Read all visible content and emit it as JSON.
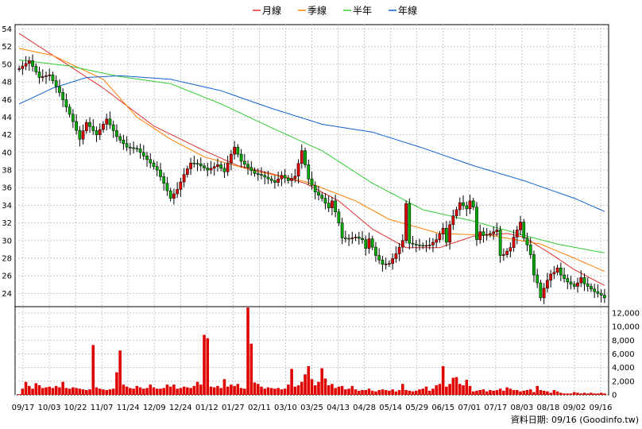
{
  "chart_data": {
    "type": "candlestick",
    "legend": [
      {
        "name": "月線",
        "color": "#e03030"
      },
      {
        "name": "季線",
        "color": "#ff8000"
      },
      {
        "name": "半年",
        "color": "#33cc33"
      },
      {
        "name": "年線",
        "color": "#1060d0"
      }
    ],
    "x_ticks": [
      "09/17",
      "10/03",
      "10/22",
      "11/07",
      "11/24",
      "12/09",
      "12/24",
      "01/12",
      "01/27",
      "02/11",
      "03/10",
      "03/25",
      "04/13",
      "04/28",
      "05/14",
      "05/29",
      "06/15",
      "07/01",
      "07/17",
      "08/03",
      "08/18",
      "09/02",
      "09/16"
    ],
    "price_axis": {
      "ticks": [
        24,
        26,
        28,
        30,
        32,
        34,
        36,
        38,
        40,
        42,
        44,
        46,
        48,
        50,
        52,
        54
      ],
      "min": 22.5,
      "max": 54.5
    },
    "volume_axis": {
      "ticks": [
        0,
        2000,
        4000,
        6000,
        8000,
        10000,
        12000
      ],
      "tick_labels": [
        "0",
        "2,000",
        "4,000",
        "6,000",
        "8,000",
        "10,000",
        "12,000"
      ],
      "min": 0,
      "max": 12000
    },
    "price_path": [
      [
        0,
        49.5
      ],
      [
        3,
        50.4
      ],
      [
        6,
        48.5
      ],
      [
        9,
        48.8
      ],
      [
        12,
        46.8
      ],
      [
        16,
        43.5
      ],
      [
        18,
        41.5
      ],
      [
        20,
        43.4
      ],
      [
        23,
        42
      ],
      [
        26,
        43.8
      ],
      [
        29,
        41.8
      ],
      [
        32,
        40.6
      ],
      [
        35,
        40.4
      ],
      [
        38,
        39.2
      ],
      [
        41,
        38
      ],
      [
        43,
        36.5
      ],
      [
        45,
        34.8
      ],
      [
        47,
        35.8
      ],
      [
        49,
        37.5
      ],
      [
        51,
        38.8
      ],
      [
        53,
        38.7
      ],
      [
        56,
        38
      ],
      [
        59,
        38.6
      ],
      [
        61,
        37.8
      ],
      [
        63,
        39.8
      ],
      [
        64,
        40.6
      ],
      [
        66,
        39
      ],
      [
        68,
        38.3
      ],
      [
        70,
        37.6
      ],
      [
        72,
        37.4
      ],
      [
        74,
        37
      ],
      [
        76,
        36.6
      ],
      [
        78,
        37.4
      ],
      [
        80,
        36.8
      ],
      [
        82,
        37.3
      ],
      [
        84,
        40.2
      ],
      [
        86,
        37
      ],
      [
        88,
        35.5
      ],
      [
        90,
        34.8
      ],
      [
        92,
        33.7
      ],
      [
        93,
        34.5
      ],
      [
        95,
        32
      ],
      [
        96,
        30.3
      ],
      [
        98,
        30.2
      ],
      [
        100,
        30.4
      ],
      [
        102,
        30.1
      ],
      [
        103,
        29.1
      ],
      [
        104,
        30.2
      ],
      [
        106,
        28.3
      ],
      [
        108,
        27.3
      ],
      [
        110,
        27.4
      ],
      [
        112,
        28.5
      ],
      [
        114,
        30
      ],
      [
        115,
        34.2
      ],
      [
        116,
        29.7
      ],
      [
        118,
        29.5
      ],
      [
        120,
        29.4
      ],
      [
        122,
        29.5
      ],
      [
        124,
        30.1
      ],
      [
        126,
        31.4
      ],
      [
        127,
        29.8
      ],
      [
        128,
        31.8
      ],
      [
        129,
        32.8
      ],
      [
        130,
        33.5
      ],
      [
        131,
        34.3
      ],
      [
        133,
        33.6
      ],
      [
        134,
        34.5
      ],
      [
        135,
        33.8
      ],
      [
        136,
        30.1
      ],
      [
        137,
        31
      ],
      [
        138,
        30.6
      ],
      [
        140,
        30.8
      ],
      [
        142,
        31.2
      ],
      [
        143,
        28.3
      ],
      [
        144,
        28.4
      ],
      [
        146,
        29.2
      ],
      [
        147,
        30.4
      ],
      [
        148,
        31.2
      ],
      [
        149,
        32.1
      ],
      [
        150,
        30.3
      ],
      [
        151,
        29.5
      ],
      [
        152,
        28.4
      ],
      [
        153,
        26.1
      ],
      [
        154,
        25.2
      ],
      [
        155,
        23.5
      ],
      [
        156,
        24.6
      ],
      [
        157,
        25.5
      ],
      [
        158,
        26.2
      ],
      [
        159,
        26.4
      ],
      [
        160,
        26.9
      ],
      [
        161,
        26.1
      ],
      [
        162,
        25.7
      ],
      [
        163,
        25.3
      ],
      [
        165,
        24.8
      ],
      [
        166,
        25.2
      ],
      [
        167,
        25.8
      ],
      [
        168,
        25.1
      ],
      [
        169,
        24.8
      ],
      [
        171,
        24.2
      ],
      [
        173,
        23.8
      ],
      [
        174,
        23.5
      ]
    ],
    "candle_count": 175,
    "month_ma": [
      [
        0,
        53.5
      ],
      [
        6,
        52
      ],
      [
        15,
        49.8
      ],
      [
        25,
        47.3
      ],
      [
        40,
        43
      ],
      [
        55,
        40.2
      ],
      [
        65,
        38.5
      ],
      [
        75,
        37.6
      ],
      [
        85,
        36.5
      ],
      [
        95,
        34.5
      ],
      [
        105,
        31.3
      ],
      [
        115,
        29.2
      ],
      [
        125,
        29.2
      ],
      [
        135,
        30.5
      ],
      [
        145,
        30.8
      ],
      [
        150,
        30.4
      ],
      [
        158,
        28.5
      ],
      [
        165,
        26.7
      ],
      [
        174,
        24.9
      ]
    ],
    "quarter_ma": [
      [
        0,
        51.8
      ],
      [
        10,
        51
      ],
      [
        25,
        48.3
      ],
      [
        35,
        44
      ],
      [
        45,
        41.5
      ],
      [
        55,
        39.5
      ],
      [
        70,
        37.9
      ],
      [
        85,
        36.7
      ],
      [
        100,
        34.5
      ],
      [
        110,
        32.4
      ],
      [
        125,
        30.8
      ],
      [
        140,
        30.6
      ],
      [
        155,
        29.6
      ],
      [
        165,
        28
      ],
      [
        174,
        26.5
      ]
    ],
    "half_ma": [
      [
        0,
        50.5
      ],
      [
        15,
        49.8
      ],
      [
        30,
        48.6
      ],
      [
        45,
        47.8
      ],
      [
        60,
        45.5
      ],
      [
        75,
        42.8
      ],
      [
        90,
        40.2
      ],
      [
        105,
        36.5
      ],
      [
        120,
        33.5
      ],
      [
        135,
        32.2
      ],
      [
        150,
        30.6
      ],
      [
        160,
        29.6
      ],
      [
        174,
        28.6
      ]
    ],
    "year_ma": [
      [
        0,
        45.5
      ],
      [
        10,
        47.3
      ],
      [
        20,
        48.5
      ],
      [
        30,
        48.7
      ],
      [
        45,
        48.3
      ],
      [
        60,
        47
      ],
      [
        75,
        45
      ],
      [
        90,
        43.2
      ],
      [
        105,
        42.3
      ],
      [
        120,
        40.5
      ],
      [
        135,
        38.5
      ],
      [
        150,
        36.8
      ],
      [
        165,
        34.8
      ],
      [
        174,
        33.3
      ]
    ],
    "volume": [
      100,
      900,
      1900,
      1300,
      900,
      1700,
      1400,
      1000,
      1100,
      1200,
      1000,
      1300,
      1100,
      1900,
      1000,
      900,
      1100,
      1000,
      900,
      800,
      700,
      800,
      7300,
      1100,
      900,
      800,
      700,
      800,
      900,
      3300,
      6500,
      1500,
      1200,
      1000,
      900,
      1300,
      1100,
      900,
      1000,
      1500,
      1100,
      900,
      900,
      1000,
      1500,
      1200,
      1500,
      900,
      1000,
      1200,
      1100,
      1000,
      1300,
      1900,
      1500,
      8800,
      8300,
      1200,
      1100,
      1300,
      1000,
      2300,
      1200,
      1500,
      1300,
      1600,
      1000,
      900,
      12800,
      7500,
      1800,
      1600,
      1200,
      900,
      1100,
      1000,
      900,
      1000,
      800,
      900,
      1500,
      3800,
      1200,
      1400,
      1900,
      3000,
      4200,
      2300,
      1400,
      1900,
      3900,
      2400,
      1400,
      1600,
      1000,
      1200,
      1300,
      800,
      900,
      1300,
      800,
      600,
      700,
      700,
      900,
      600,
      500,
      700,
      800,
      700,
      600,
      800,
      500,
      700,
      1600,
      700,
      600,
      500,
      600,
      800,
      900,
      1200,
      600,
      900,
      1400,
      1600,
      4200,
      1200,
      1600,
      2500,
      2600,
      1600,
      1400,
      2200,
      1300,
      500,
      600,
      700,
      800,
      500,
      700,
      600,
      700,
      900,
      600,
      1100,
      900,
      700,
      700,
      500,
      600,
      700,
      800,
      400,
      1300,
      700,
      600,
      500,
      300,
      700,
      500,
      300,
      200,
      200,
      200,
      400,
      300,
      200,
      300,
      200,
      300,
      200,
      200,
      300,
      200
    ],
    "data_note": "資料日期: 09/16  (Goodinfo.tw)"
  }
}
